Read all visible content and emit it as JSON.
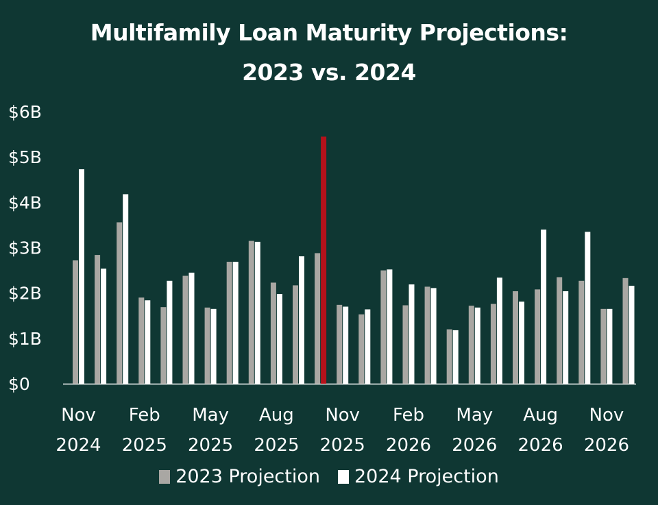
{
  "chart_data": {
    "type": "bar",
    "title": "Multifamily Loan Maturity Projections:",
    "subtitle": "2023 vs. 2024",
    "y_ticks": [
      "$0",
      "$1B",
      "$2B",
      "$3B",
      "$4B",
      "$5B",
      "$6B"
    ],
    "ylim": [
      0,
      6
    ],
    "y_unit": "billions USD",
    "x_tick_labels": [
      {
        "month": "Nov",
        "year": "2024",
        "index": 0
      },
      {
        "month": "Feb",
        "year": "2025",
        "index": 3
      },
      {
        "month": "May",
        "year": "2025",
        "index": 6
      },
      {
        "month": "Aug",
        "year": "2025",
        "index": 9
      },
      {
        "month": "Nov",
        "year": "2025",
        "index": 12
      },
      {
        "month": "Feb",
        "year": "2026",
        "index": 15
      },
      {
        "month": "May",
        "year": "2026",
        "index": 18
      },
      {
        "month": "Aug",
        "year": "2026",
        "index": 21
      },
      {
        "month": "Nov",
        "year": "2026",
        "index": 24
      }
    ],
    "series": [
      {
        "name": "2023 Projection",
        "color": "#a9a7a3",
        "values": [
          2.72,
          2.84,
          3.56,
          1.9,
          1.69,
          2.38,
          1.68,
          2.69,
          3.15,
          2.23,
          2.17,
          2.88,
          1.74,
          1.53,
          2.5,
          1.73,
          2.14,
          1.2,
          1.72,
          1.76,
          2.04,
          2.08,
          2.35,
          2.27,
          1.65,
          2.33
        ]
      },
      {
        "name": "2024 Projection",
        "color": "#ffffff",
        "values": [
          4.73,
          2.54,
          4.18,
          1.84,
          2.27,
          2.45,
          1.65,
          2.69,
          3.13,
          1.98,
          2.81,
          null,
          1.7,
          1.64,
          2.52,
          2.19,
          2.11,
          1.18,
          1.68,
          2.34,
          1.81,
          3.4,
          2.04,
          3.35,
          1.65,
          2.16
        ]
      }
    ],
    "highlight": {
      "index": 11,
      "value": 5.45,
      "color": "#b5121b"
    },
    "legend_position": "bottom-center",
    "grid": false
  }
}
